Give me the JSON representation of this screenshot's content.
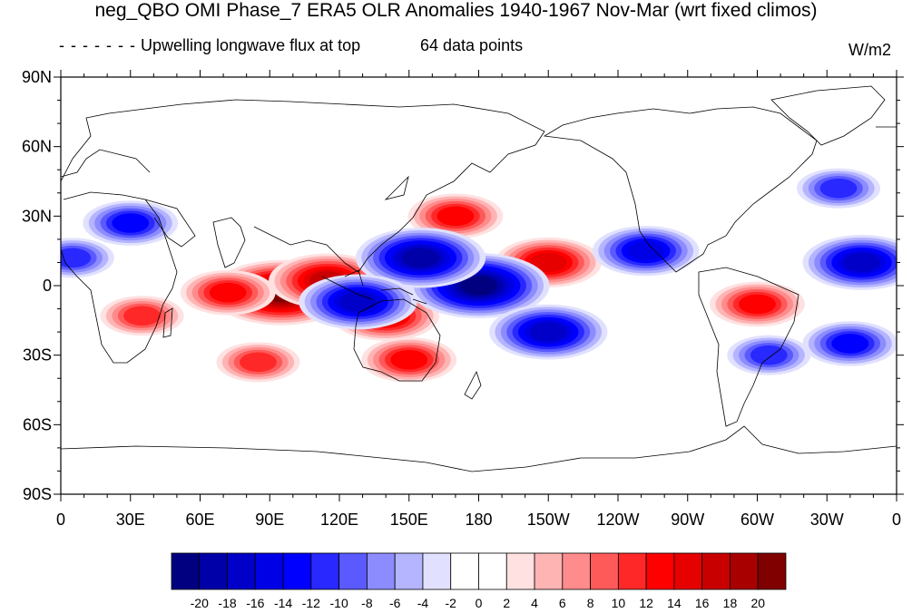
{
  "title": "neg_QBO OMI Phase_7 ERA5 OLR Anomalies 1940-1967 Nov-Mar (wrt fixed climos)",
  "legend_line_label": "Upwelling longwave flux at top",
  "sample_note": "64 data points",
  "units": "W/m2",
  "lat_ticks": [
    "90N",
    "60N",
    "30N",
    "0",
    "30S",
    "60S",
    "90S"
  ],
  "lon_ticks": [
    "0",
    "30E",
    "60E",
    "90E",
    "120E",
    "150E",
    "180",
    "150W",
    "120W",
    "90W",
    "60W",
    "30W",
    "0"
  ],
  "colorbar": {
    "levels": [
      "-20",
      "-18",
      "-16",
      "-14",
      "-12",
      "-10",
      "-8",
      "-6",
      "-4",
      "-2",
      "0",
      "2",
      "4",
      "6",
      "8",
      "10",
      "12",
      "14",
      "16",
      "18",
      "20"
    ],
    "colors": [
      "#000080",
      "#0000a8",
      "#0000c8",
      "#0000e6",
      "#0000ff",
      "#2828ff",
      "#5a5aff",
      "#8c8cff",
      "#b4b4ff",
      "#e1e1ff",
      "#ffffff",
      "#ffffff",
      "#ffe1e1",
      "#ffb4b4",
      "#ff8c8c",
      "#ff5a5a",
      "#ff2828",
      "#ff0000",
      "#e60000",
      "#c80000",
      "#a80000",
      "#800000"
    ]
  },
  "chart_data": {
    "type": "heatmap",
    "projection": "cylindrical-equidistant",
    "variable": "OLR anomaly",
    "units": "W/m2",
    "lon_range": [
      0,
      360
    ],
    "lat_range": [
      -90,
      90
    ],
    "color_levels": [
      -20,
      -18,
      -16,
      -14,
      -12,
      -10,
      -8,
      -6,
      -4,
      -2,
      0,
      2,
      4,
      6,
      8,
      10,
      12,
      14,
      16,
      18,
      20
    ],
    "anomaly_features": [
      {
        "sign": "positive",
        "lon": 95,
        "lat": -3,
        "value": 20
      },
      {
        "sign": "positive",
        "lon": 115,
        "lat": 2,
        "value": 16
      },
      {
        "sign": "positive",
        "lon": 72,
        "lat": -3,
        "value": 12
      },
      {
        "sign": "positive",
        "lon": 140,
        "lat": -13,
        "value": 14
      },
      {
        "sign": "positive",
        "lon": 150,
        "lat": -32,
        "value": 12
      },
      {
        "sign": "positive",
        "lon": 170,
        "lat": 30,
        "value": 12
      },
      {
        "sign": "positive",
        "lon": 210,
        "lat": 10,
        "value": 14
      },
      {
        "sign": "positive",
        "lon": 300,
        "lat": -8,
        "value": 12
      },
      {
        "sign": "positive",
        "lon": 35,
        "lat": -13,
        "value": 10
      },
      {
        "sign": "positive",
        "lon": 85,
        "lat": -33,
        "value": 10
      },
      {
        "sign": "negative",
        "lon": 180,
        "lat": 0,
        "value": -20
      },
      {
        "sign": "negative",
        "lon": 155,
        "lat": 12,
        "value": -18
      },
      {
        "sign": "negative",
        "lon": 128,
        "lat": -7,
        "value": -16
      },
      {
        "sign": "negative",
        "lon": 210,
        "lat": -20,
        "value": -16
      },
      {
        "sign": "negative",
        "lon": 252,
        "lat": 15,
        "value": -14
      },
      {
        "sign": "negative",
        "lon": 345,
        "lat": 10,
        "value": -16
      },
      {
        "sign": "negative",
        "lon": 340,
        "lat": -25,
        "value": -12
      },
      {
        "sign": "negative",
        "lon": 30,
        "lat": 27,
        "value": -12
      },
      {
        "sign": "negative",
        "lon": 5,
        "lat": 12,
        "value": -10
      },
      {
        "sign": "negative",
        "lon": 305,
        "lat": -30,
        "value": -10
      },
      {
        "sign": "negative",
        "lon": 335,
        "lat": 42,
        "value": -10
      }
    ]
  }
}
